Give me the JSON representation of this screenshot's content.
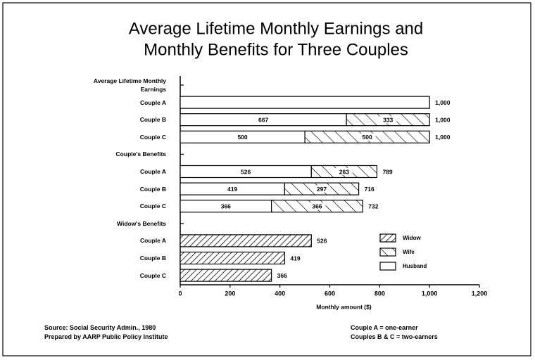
{
  "chart_data": {
    "type": "stacked-barh",
    "title": "Average Lifetime Monthly Earnings and",
    "subtitle": "Monthly Benefits for Three Couples",
    "categories": [
      "Average Lifetime Monthly Earnings",
      "Couple A",
      "Couple B",
      "Couple C",
      "Couple's Benefits",
      "Couple A",
      "Couple B",
      "Couple C",
      "Widow's Benefits",
      "Couple A",
      "Couple B",
      "Couple C"
    ],
    "series": [
      {
        "name": "Husband",
        "color": "#ffffff",
        "pattern": "none",
        "values": [
          null,
          1000,
          667,
          500,
          null,
          526,
          419,
          366,
          null,
          null,
          null,
          null
        ],
        "value_labels": [
          null,
          null,
          "667",
          "500",
          null,
          "526",
          "419",
          "366",
          null,
          null,
          null,
          null
        ]
      },
      {
        "name": "Wife",
        "color": "#ffffff",
        "pattern": "backslash",
        "values": [
          null,
          null,
          333,
          500,
          null,
          263,
          297,
          366,
          null,
          null,
          null,
          null
        ],
        "value_labels": [
          null,
          null,
          "333",
          "500",
          null,
          "263",
          "297",
          "366",
          null,
          null,
          null,
          null
        ]
      },
      {
        "name": "Widow",
        "color": "#ffffff",
        "pattern": "slash",
        "values": [
          null,
          null,
          null,
          null,
          null,
          null,
          null,
          null,
          null,
          526,
          419,
          366
        ],
        "value_labels": [
          null,
          null,
          null,
          null,
          null,
          null,
          null,
          null,
          null,
          null,
          null,
          null
        ]
      }
    ],
    "totals": [
      null,
      1000,
      1000,
      1000,
      null,
      789,
      716,
      732,
      null,
      526,
      419,
      366
    ],
    "total_labels": [
      null,
      "1,000",
      "1,000",
      "1,000",
      null,
      "789",
      "716",
      "732",
      null,
      "526",
      "419",
      "366"
    ],
    "xlim": [
      0,
      1200
    ],
    "xticks": [
      0,
      200,
      400,
      600,
      800,
      {
        "value": 1000,
        "label": "1,000"
      },
      {
        "value": 1200,
        "label": "1,200"
      }
    ],
    "xlabel": "Monthly amount ($)",
    "legend": "lower right",
    "legend_order": [
      2,
      1,
      0
    ],
    "notes": [
      "Source: Social Security Admin., 1980",
      "Prepared by AARP Public Policy Institute",
      "Couple A = one-earner",
      "Couples B & C = two-earners"
    ]
  }
}
